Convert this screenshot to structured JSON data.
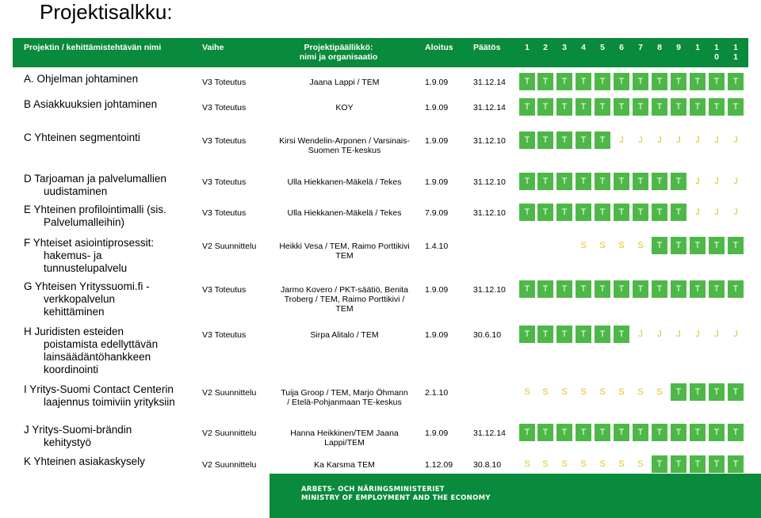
{
  "title": "Projektisalkku:",
  "header": {
    "project": "Projektin / kehittämistehtävän nimi",
    "phase": "Vaihe",
    "lead_l1": "Projektipäällikkö:",
    "lead_l2": "nimi ja organisaatio",
    "start": "Aloitus",
    "end": "Päätös",
    "periods": [
      "1",
      "2",
      "3",
      "4",
      "5",
      "6",
      "7",
      "8",
      "9",
      "1",
      "1\n0",
      "1\n1"
    ]
  },
  "rows": [
    {
      "name_l1": "A. Ohjelman johtaminen",
      "name_l2": "",
      "name_l3": "",
      "name_l4": "",
      "phase": "V3 Toteutus",
      "lead": "Jaana Lappi / TEM",
      "start": "1.9.09",
      "end": "31.12.14",
      "cells": [
        "T",
        "T",
        "T",
        "T",
        "T",
        "T",
        "T",
        "T",
        "T",
        "T",
        "T",
        "T"
      ]
    },
    {
      "name_l1": "B Asiakkuuksien johtaminen",
      "name_l2": "",
      "name_l3": "",
      "name_l4": "",
      "phase": "V3 Toteutus",
      "lead": "KOY",
      "start": "1.9.09",
      "end": "31.12.14",
      "cells": [
        "T",
        "T",
        "T",
        "T",
        "T",
        "T",
        "T",
        "T",
        "T",
        "T",
        "T",
        "T"
      ]
    },
    {
      "name_l1": "C Yhteinen segmentointi",
      "name_l2": "",
      "name_l3": "",
      "name_l4": "",
      "phase": "V3 Toteutus",
      "lead": "Kirsi Wendelin-Arponen / Varsinais-Suomen TE-keskus",
      "start": "1.9.09",
      "end": "31.12.10",
      "cells": [
        "T",
        "T",
        "T",
        "T",
        "T",
        "J",
        "J",
        "J",
        "J",
        "J",
        "J",
        "J"
      ]
    },
    {
      "name_l1": "D Tarjoaman ja palvelumallien",
      "name_l2": "uudistaminen",
      "name_l3": "",
      "name_l4": "",
      "phase": "V3 Toteutus",
      "lead": "Ulla Hiekkanen-Mäkelä / Tekes",
      "start": "1.9.09",
      "end": "31.12.10",
      "cells": [
        "T",
        "T",
        "T",
        "T",
        "T",
        "T",
        "T",
        "T",
        "T",
        "J",
        "J",
        "J"
      ]
    },
    {
      "name_l1": "E Yhteinen profilointimalli (sis.",
      "name_l2": "Palvelumalleihin)",
      "name_l3": "",
      "name_l4": "",
      "phase": "V3 Toteutus",
      "lead": "Ulla Hiekkanen-Mäkelä / Tekes",
      "start": "7.9.09",
      "end": "31.12.10",
      "cells": [
        "T",
        "T",
        "T",
        "T",
        "T",
        "T",
        "T",
        "T",
        "T",
        "J",
        "J",
        "J"
      ]
    },
    {
      "name_l1": "F Yhteiset asiointiprosessit:",
      "name_l2": "hakemus- ja",
      "name_l3": "tunnustelupalvelu",
      "name_l4": "",
      "phase": "V2 Suunnittelu",
      "lead": "Heikki Vesa / TEM, Raimo Porttikivi TEM",
      "start": "1.4.10",
      "end": "",
      "cells": [
        "",
        "",
        "",
        "S",
        "S",
        "S",
        "S",
        "T",
        "T",
        "T",
        "T",
        "T"
      ]
    },
    {
      "name_l1": "G Yhteisen Yrityssuomi.fi -",
      "name_l2": "verkkopalvelun",
      "name_l3": "kehittäminen",
      "name_l4": "",
      "phase": "V3 Toteutus",
      "lead": "Jarmo Kovero / PKT-säätiö, Benita Troberg / TEM, Raimo Porttikivi / TEM",
      "start": "1.9.09",
      "end": "31.12.10",
      "cells": [
        "T",
        "T",
        "T",
        "T",
        "T",
        "T",
        "T",
        "T",
        "T",
        "T",
        "T",
        "T"
      ]
    },
    {
      "name_l1": "H Juridisten esteiden",
      "name_l2": "poistamista edellyttävän",
      "name_l3": "lainsäädäntöhankkeen",
      "name_l4": "koordinointi",
      "phase": "V3 Toteutus",
      "lead": "Sirpa Alitalo / TEM",
      "start": "1.9.09",
      "end": "30.6.10",
      "cells": [
        "T",
        "T",
        "T",
        "T",
        "T",
        "T",
        "J",
        "J",
        "J",
        "J",
        "J",
        "J"
      ]
    },
    {
      "name_l1": "I Yritys-Suomi Contact Centerin",
      "name_l2": "laajennus toimiviin yrityksiin",
      "name_l3": "",
      "name_l4": "",
      "phase": "V2 Suunnittelu",
      "lead": "Tuija Groop / TEM, Marjo Öhmann / Etelä-Pohjanmaan TE-keskus",
      "start": "2.1.10",
      "end": "",
      "cells": [
        "S",
        "S",
        "S",
        "S",
        "S",
        "S",
        "S",
        "S",
        "T",
        "T",
        "T",
        "T"
      ]
    },
    {
      "name_l1": "J Yritys-Suomi-brändin",
      "name_l2": "kehitystyö",
      "name_l3": "",
      "name_l4": "",
      "phase": "V2 Suunnittelu",
      "lead": "Hanna Heikkinen/TEM Jaana Lappi/TEM",
      "start": "1.9.09",
      "end": "31.12.14",
      "cells": [
        "T",
        "T",
        "T",
        "T",
        "T",
        "T",
        "T",
        "T",
        "T",
        "T",
        "T",
        "T"
      ]
    },
    {
      "name_l1": "K Yhteinen asiakaskysely",
      "name_l2": "",
      "name_l3": "",
      "name_l4": "",
      "phase": "V2 Suunnittelu",
      "lead": "Ka Karsma TEM",
      "start": "1.12.09",
      "end": "30.8.10",
      "cells": [
        "S",
        "S",
        "S",
        "S",
        "S",
        "S",
        "S",
        "T",
        "T",
        "T",
        "T",
        "T"
      ]
    }
  ],
  "footer": {
    "line1": "ARBETS- OCH NÄRINGSMINISTERIET",
    "line2": "MINISTRY OF EMPLOYMENT AND THE ECONOMY"
  },
  "colors": {
    "header_bg": "#0a8a3c",
    "cell_T": "#4db848",
    "cell_text": "#ffffff",
    "cell_J_S": "#e3c21a"
  }
}
